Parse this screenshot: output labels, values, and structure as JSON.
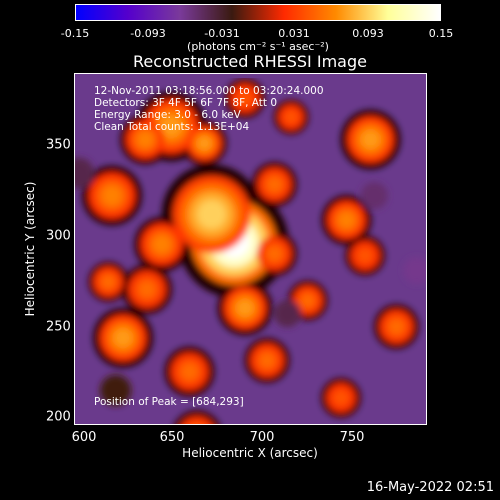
{
  "colorbar": {
    "ticks": [
      "-0.15",
      "-0.093",
      "-0.031",
      "0.031",
      "0.093",
      "0.15"
    ],
    "units": "(photons cm⁻² s⁻¹ asec⁻²)",
    "colors": [
      "#0000ff",
      "#5500cc",
      "#7a3a9a",
      "#3a1a10",
      "#ff2a00",
      "#ff8a00",
      "#ffff99",
      "#ffffff"
    ]
  },
  "info": {
    "time": "12-Nov-2011 03:18:56.000 to 03:20:24.000",
    "detectors": "Detectors: 3F 4F 5F 6F 7F 8F, Att 0",
    "energy": "Energy Range: 3.0 - 6.0 keV",
    "clean": "Clean     Total counts: 1.13E+04",
    "peak": "Position of Peak = [684,293]"
  },
  "footer": {
    "timestamp": "16-May-2022 02:51"
  },
  "chart_data": {
    "type": "heatmap",
    "title": "Reconstructed RHESSI Image",
    "xlabel": "Heliocentric X (arcsec)",
    "ylabel": "Heliocentric Y (arcsec)",
    "xlim": [
      598,
      788
    ],
    "ylim": [
      196,
      383
    ],
    "xticks": [
      "600",
      "650",
      "700",
      "750"
    ],
    "yticks": [
      "200",
      "250",
      "300",
      "350"
    ],
    "zlim": [
      -0.15,
      0.15
    ],
    "peak": [
      684,
      293
    ],
    "blobs": [
      {
        "x": 684,
        "y": 293,
        "r": 22,
        "v": 0.15
      },
      {
        "x": 672,
        "y": 308,
        "r": 20,
        "v": 0.09
      },
      {
        "x": 650,
        "y": 355,
        "r": 14,
        "v": 0.07
      },
      {
        "x": 636,
        "y": 348,
        "r": 10,
        "v": 0.06
      },
      {
        "x": 668,
        "y": 346,
        "r": 9,
        "v": 0.07
      },
      {
        "x": 618,
        "y": 318,
        "r": 12,
        "v": 0.06
      },
      {
        "x": 645,
        "y": 292,
        "r": 11,
        "v": 0.06
      },
      {
        "x": 637,
        "y": 268,
        "r": 10,
        "v": 0.05
      },
      {
        "x": 624,
        "y": 242,
        "r": 12,
        "v": 0.07
      },
      {
        "x": 660,
        "y": 224,
        "r": 10,
        "v": 0.05
      },
      {
        "x": 690,
        "y": 258,
        "r": 11,
        "v": 0.07
      },
      {
        "x": 706,
        "y": 324,
        "r": 9,
        "v": 0.05
      },
      {
        "x": 706,
        "y": 287,
        "r": 9,
        "v": 0.05
      },
      {
        "x": 724,
        "y": 262,
        "r": 8,
        "v": 0.05
      },
      {
        "x": 745,
        "y": 305,
        "r": 10,
        "v": 0.06
      },
      {
        "x": 758,
        "y": 348,
        "r": 12,
        "v": 0.07
      },
      {
        "x": 755,
        "y": 286,
        "r": 8,
        "v": 0.04
      },
      {
        "x": 772,
        "y": 248,
        "r": 9,
        "v": 0.05
      },
      {
        "x": 702,
        "y": 230,
        "r": 9,
        "v": 0.05
      },
      {
        "x": 742,
        "y": 210,
        "r": 8,
        "v": 0.04
      },
      {
        "x": 664,
        "y": 190,
        "r": 10,
        "v": 0.05
      },
      {
        "x": 715,
        "y": 360,
        "r": 7,
        "v": 0.04
      },
      {
        "x": 616,
        "y": 272,
        "r": 8,
        "v": 0.05
      },
      {
        "x": 690,
        "y": 370,
        "r": 8,
        "v": 0.04
      },
      {
        "x": 620,
        "y": 214,
        "r": 8,
        "v": -0.02
      },
      {
        "x": 783,
        "y": 278,
        "r": 7,
        "v": -0.06
      },
      {
        "x": 713,
        "y": 255,
        "r": 7,
        "v": -0.04
      },
      {
        "x": 600,
        "y": 330,
        "r": 8,
        "v": -0.04
      },
      {
        "x": 760,
        "y": 318,
        "r": 7,
        "v": -0.05
      }
    ]
  }
}
